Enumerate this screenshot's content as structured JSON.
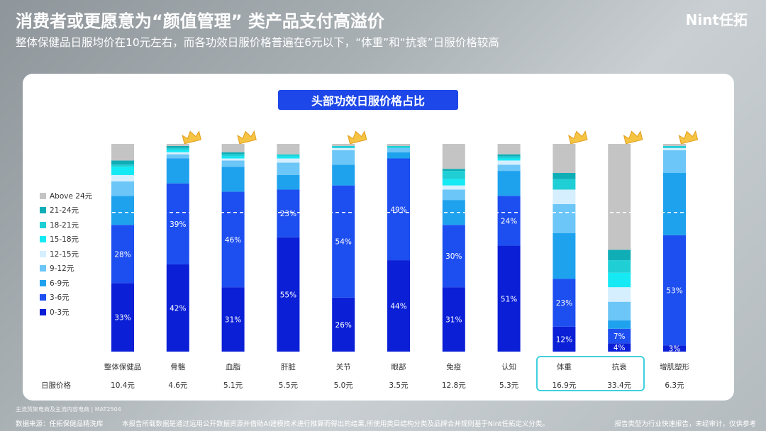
{
  "header": {
    "title": "消费者或更愿意为“颜值管理” 类产品支付高溢价",
    "subtitle": "整体保健品日服均价在10元左右，而各功效日服价格普遍在6元以下，“体重”和“抗衰”日服价格较高",
    "brand": "Nint任拓"
  },
  "chart_data": {
    "type": "bar",
    "stacked": true,
    "percent": true,
    "title": "头部功效日服价格占比",
    "categories": [
      "整体保健品",
      "骨骼",
      "血脂",
      "肝脏",
      "关节",
      "眼部",
      "免疫",
      "认知",
      "体重",
      "抗衰",
      "增肌塑形"
    ],
    "price_row_label": "日服价格",
    "prices": [
      "10.4元",
      "4.6元",
      "5.1元",
      "5.5元",
      "5.0元",
      "3.5元",
      "12.8元",
      "5.3元",
      "16.9元",
      "33.4元",
      "6.3元"
    ],
    "crowned": [
      false,
      true,
      true,
      false,
      true,
      false,
      false,
      false,
      true,
      true,
      true
    ],
    "highlighted": [
      "体重",
      "抗衰"
    ],
    "series": [
      {
        "name": "0-3元",
        "color": "#0a1fd6",
        "values": [
          33,
          42,
          31,
          55,
          26,
          44,
          31,
          51,
          12,
          4,
          3
        ]
      },
      {
        "name": "3-6元",
        "color": "#1d4ef0",
        "values": [
          28,
          39,
          46,
          23,
          54,
          49,
          30,
          24,
          23,
          7,
          53
        ]
      },
      {
        "name": "6-9元",
        "color": "#1fa2ee",
        "values": [
          14,
          12,
          12,
          7,
          10,
          3,
          12,
          12,
          22,
          4,
          30
        ]
      },
      {
        "name": "9-12元",
        "color": "#6cc6f7",
        "values": [
          7,
          2,
          3,
          6,
          7,
          2,
          5,
          3,
          14,
          9,
          11
        ]
      },
      {
        "name": "12-15元",
        "color": "#d5efff",
        "values": [
          3,
          1,
          1,
          2,
          1,
          0,
          2,
          2,
          7,
          7,
          1
        ]
      },
      {
        "name": "15-18元",
        "color": "#14e9f4",
        "values": [
          4,
          1,
          1,
          1,
          0,
          0,
          3,
          1,
          0,
          7,
          0
        ]
      },
      {
        "name": "18-21元",
        "color": "#20cfd6",
        "values": [
          1,
          1,
          1,
          1,
          1,
          1,
          4,
          1,
          5,
          6,
          1
        ]
      },
      {
        "name": "21-24元",
        "color": "#0fadb6",
        "values": [
          2,
          1,
          1,
          0,
          0,
          0,
          1,
          1,
          3,
          5,
          0
        ]
      },
      {
        "name": "Above 24元",
        "color": "#c4c4c4",
        "values": [
          8,
          1,
          4,
          5,
          1,
          1,
          12,
          5,
          14,
          51,
          1
        ]
      }
    ],
    "labels": [
      {
        "category": "整体保健品",
        "series": "0-3元",
        "text": "33%"
      },
      {
        "category": "整体保健品",
        "series": "3-6元",
        "text": "28%"
      },
      {
        "category": "骨骼",
        "series": "0-3元",
        "text": "42%"
      },
      {
        "category": "骨骼",
        "series": "3-6元",
        "text": "39%"
      },
      {
        "category": "血脂",
        "series": "0-3元",
        "text": "31%"
      },
      {
        "category": "血脂",
        "series": "3-6元",
        "text": "46%"
      },
      {
        "category": "肝脏",
        "series": "0-3元",
        "text": "55%"
      },
      {
        "category": "肝脏",
        "series": "3-6元",
        "text": "23%"
      },
      {
        "category": "关节",
        "series": "0-3元",
        "text": "26%"
      },
      {
        "category": "关节",
        "series": "3-6元",
        "text": "54%"
      },
      {
        "category": "眼部",
        "series": "0-3元",
        "text": "44%"
      },
      {
        "category": "眼部",
        "series": "3-6元",
        "text": "49%"
      },
      {
        "category": "免疫",
        "series": "0-3元",
        "text": "31%"
      },
      {
        "category": "免疫",
        "series": "3-6元",
        "text": "30%"
      },
      {
        "category": "认知",
        "series": "0-3元",
        "text": "51%"
      },
      {
        "category": "认知",
        "series": "3-6元",
        "text": "24%"
      },
      {
        "category": "体重",
        "series": "0-3元",
        "text": "12%"
      },
      {
        "category": "体重",
        "series": "3-6元",
        "text": "23%"
      },
      {
        "category": "抗衰",
        "series": "0-3元",
        "text": "4%"
      },
      {
        "category": "抗衰",
        "series": "3-6元",
        "text": "7%"
      },
      {
        "category": "增肌塑形",
        "series": "0-3元",
        "text": "3%"
      },
      {
        "category": "增肌塑形",
        "series": "3-6元",
        "text": "53%"
      }
    ],
    "reference_line": {
      "style": "dashed",
      "value": 67
    },
    "ylim": [
      0,
      100
    ]
  },
  "footer": {
    "note": "主流货架电商及主流内容电商 | MAT2504",
    "source": "数据来源：任拓保健品精洗库",
    "disclaimer": "本报告所载数据是通过运用公开数据资源并借助AI建模技术进行推算而得出的结果,所使用类目结构分类及品牌合并规则基于Nint任拓定义分类。",
    "report_type": "报告类型为行业快速报告，未经审计，仅供参考"
  }
}
